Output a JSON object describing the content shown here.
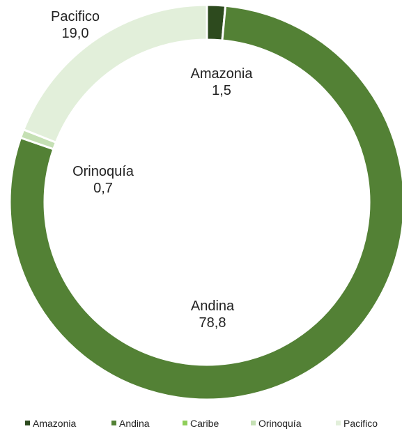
{
  "chart_data": {
    "type": "pie",
    "variant": "donut",
    "title": "",
    "categories": [
      "Amazonia",
      "Andina",
      "Caribe",
      "Orinoquía",
      "Pacifico"
    ],
    "values": [
      1.5,
      78.8,
      0.0,
      0.7,
      19.0
    ],
    "value_labels": [
      "1,5",
      "78,8",
      "",
      "0,7",
      "19,0"
    ],
    "colors": [
      "#2d4a1e",
      "#538135",
      "#8fce5a",
      "#c5e0b4",
      "#e2efda"
    ],
    "show_label": [
      true,
      true,
      false,
      true,
      true
    ],
    "legend": {
      "position": "bottom",
      "entries": [
        "Amazonia",
        "Andina",
        "Caribe",
        "Orinoquía",
        "Pacifico"
      ]
    }
  }
}
